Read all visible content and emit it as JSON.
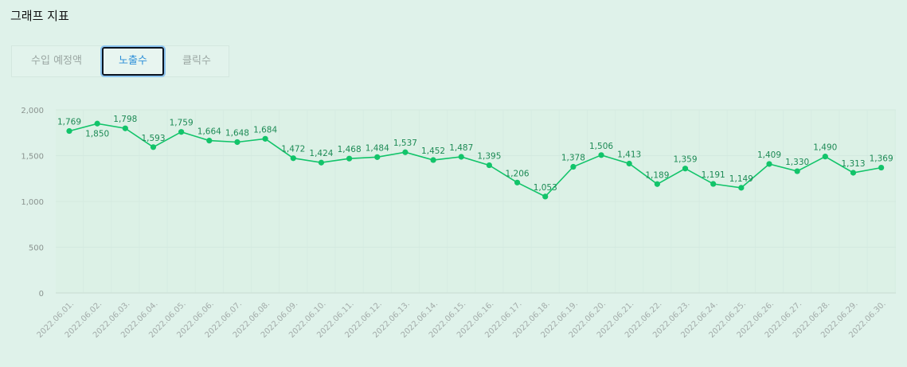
{
  "page_title": "그래프 지표",
  "tabs": [
    {
      "label": "수입 예정액",
      "active": false
    },
    {
      "label": "노출수",
      "active": true
    },
    {
      "label": "클릭수",
      "active": false
    }
  ],
  "colors": {
    "line": "#12c46a",
    "active_tab_text": "#2d8fd8",
    "background": "#dff2ea"
  },
  "chart_data": {
    "type": "line",
    "categories": [
      "2022.06.01.",
      "2022.06.02.",
      "2022.06.03.",
      "2022.06.04.",
      "2022.06.05.",
      "2022.06.06.",
      "2022.06.07.",
      "2022.06.08.",
      "2022.06.09.",
      "2022.06.10.",
      "2022.06.11.",
      "2022.06.12.",
      "2022.06.13.",
      "2022.06.14.",
      "2022.06.15.",
      "2022.06.16.",
      "2022.06.17.",
      "2022.06.18.",
      "2022.06.19.",
      "2022.06.20.",
      "2022.06.21.",
      "2022.06.22.",
      "2022.06.23.",
      "2022.06.24.",
      "2022.06.25.",
      "2022.06.26.",
      "2022.06.27.",
      "2022.06.28.",
      "2022.06.29.",
      "2022.06.30."
    ],
    "series": [
      {
        "values": [
          1769,
          1850,
          1798,
          1593,
          1759,
          1664,
          1648,
          1684,
          1472,
          1424,
          1468,
          1484,
          1537,
          1452,
          1487,
          1395,
          1206,
          1053,
          1378,
          1506,
          1413,
          1189,
          1359,
          1191,
          1149,
          1409,
          1330,
          1490,
          1313,
          1369
        ]
      }
    ],
    "data_labels": [
      "1,769",
      "1,850",
      "1,798",
      "1,593",
      "1,759",
      "1,664",
      "1,648",
      "1,684",
      "1,472",
      "1,424",
      "1,468",
      "1,484",
      "1,537",
      "1,452",
      "1,487",
      "1,395",
      "1,206",
      "1,053",
      "1,378",
      "1,506",
      "1,413",
      "1,189",
      "1,359",
      "1,191",
      "1,149",
      "1,409",
      "1,330",
      "1,490",
      "1,313",
      "1,369"
    ],
    "yticks": [
      0,
      500,
      1000,
      1500,
      2000
    ],
    "ytick_labels": [
      "0",
      "500",
      "1,000",
      "1,500",
      "2,000"
    ],
    "ylim": [
      0,
      2000
    ],
    "grid": true,
    "legend": "none"
  }
}
